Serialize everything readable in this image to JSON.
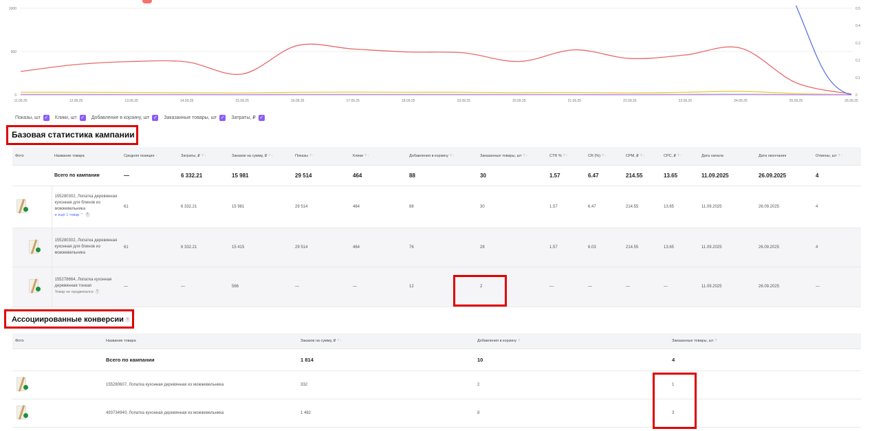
{
  "chart_data": {
    "type": "line",
    "x": [
      "11.09.25",
      "12.09.25",
      "13.09.25",
      "14.09.25",
      "15.09.25",
      "16.09.25",
      "17.09.25",
      "18.09.25",
      "19.09.25",
      "20.09.25",
      "21.09.25",
      "22.09.25",
      "23.09.25",
      "24.09.25",
      "25.09.25",
      "26.09.25"
    ],
    "y_left_ticks": [
      "0",
      "500",
      "1000"
    ],
    "y_right_ticks": [
      "0",
      "0.1",
      "0.2",
      "0.3",
      "0.4",
      "0.5"
    ],
    "ylim_left": [
      0,
      1000
    ],
    "ylim_right": [
      0,
      0.5
    ],
    "series": [
      {
        "name": "Показы, шт",
        "axis": "left",
        "color": "#e86a6a",
        "values": [
          270,
          350,
          385,
          380,
          240,
          570,
          530,
          495,
          485,
          385,
          520,
          420,
          460,
          540,
          140,
          10
        ]
      },
      {
        "name": "Клики, шт",
        "axis": "left",
        "color": "#f4c542",
        "values": [
          30,
          30,
          28,
          25,
          22,
          30,
          32,
          30,
          30,
          25,
          28,
          22,
          30,
          40,
          15,
          3
        ]
      },
      {
        "name": "Добавление в корзину, шт",
        "axis": "left",
        "color": "#8ed6a8",
        "values": [
          6,
          6,
          5,
          5,
          4,
          6,
          6,
          6,
          6,
          5,
          5,
          4,
          6,
          8,
          3,
          1
        ]
      },
      {
        "name": "Заказанные товары, шт",
        "axis": "left",
        "color": "#c084fc",
        "values": [
          2,
          2,
          2,
          2,
          1,
          2,
          2,
          2,
          2,
          2,
          2,
          1,
          2,
          3,
          1,
          0
        ]
      },
      {
        "name": "Затраты, ₽",
        "axis": "right",
        "color": "#5b74e0",
        "values": [
          null,
          null,
          null,
          null,
          null,
          null,
          null,
          null,
          null,
          null,
          null,
          null,
          null,
          null,
          0.51,
          0.0
        ]
      }
    ],
    "grid": true,
    "legend": "bottom-left"
  },
  "legend": [
    {
      "label": "Показы, шт"
    },
    {
      "label": "Клики, шт"
    },
    {
      "label": "Добавление в корзину, шт"
    },
    {
      "label": "Заказанные товары, шт"
    },
    {
      "label": "Затраты, ₽"
    }
  ],
  "base_stats": {
    "title": "Базовая статистика кампании",
    "columns": [
      "Фото",
      "Название товара",
      "Средняя позиция",
      "Затраты, ₽",
      "Заказов на сумму, ₽",
      "Показы",
      "Клики",
      "Добавления в корзину",
      "Заказанные товары, шт",
      "CTR %",
      "CR (%)",
      "CPM, ₽",
      "CPC, ₽",
      "Дата начала",
      "Дата окончания",
      "Отмены, шт"
    ],
    "total": [
      "",
      "Всего по кампании",
      "—",
      "6 332.21",
      "15 981",
      "29 514",
      "464",
      "88",
      "30",
      "1.57",
      "6.47",
      "214.55",
      "13.65",
      "11.09.2025",
      "26.09.2025",
      "4"
    ],
    "rows": [
      {
        "name": "155280302, Лопатка деревянная кухонная для блинов из можжевельника",
        "sub": "и ещё 1 товар ⌃",
        "cells": [
          "61",
          "6 332.21",
          "15 981",
          "29 514",
          "464",
          "88",
          "30",
          "1.57",
          "6.47",
          "214.55",
          "13.65",
          "11.09.2025",
          "26.09.2025",
          "4"
        ]
      },
      {
        "name": "155280302, Лопатка деревянная кухонная для блинов из можжевельника",
        "sub": "",
        "cells": [
          "61",
          "6 332.21",
          "15 415",
          "29 514",
          "464",
          "76",
          "28",
          "1.57",
          "6.03",
          "214.55",
          "13.65",
          "11.09.2025",
          "26.09.2025",
          "4"
        ]
      },
      {
        "name": "155278664, Лопатка кухонная деревянная тонкая",
        "sub": "Товар не продвигался",
        "cells": [
          "—",
          "—",
          "566",
          "—",
          "—",
          "12",
          "2",
          "—",
          "—",
          "—",
          "—",
          "11.09.2025",
          "26.09.2025",
          "—"
        ]
      }
    ]
  },
  "assoc": {
    "title": "Ассоциированные конверсии",
    "columns": [
      "Фото",
      "Название товара",
      "Заказов на сумму, ₽",
      "Добавления в корзину",
      "Заказанные товары, шт"
    ],
    "total": [
      "",
      "Всего по кампании",
      "1 814",
      "10",
      "4"
    ],
    "rows": [
      {
        "name": "155280607, Лопатка кухонная деревянная из можжевельника",
        "cells": [
          "332",
          "2",
          "1"
        ]
      },
      {
        "name": "493734940, Лопатка кухонная деревянная из можжевельника",
        "cells": [
          "1 482",
          "8",
          "3"
        ]
      }
    ]
  }
}
